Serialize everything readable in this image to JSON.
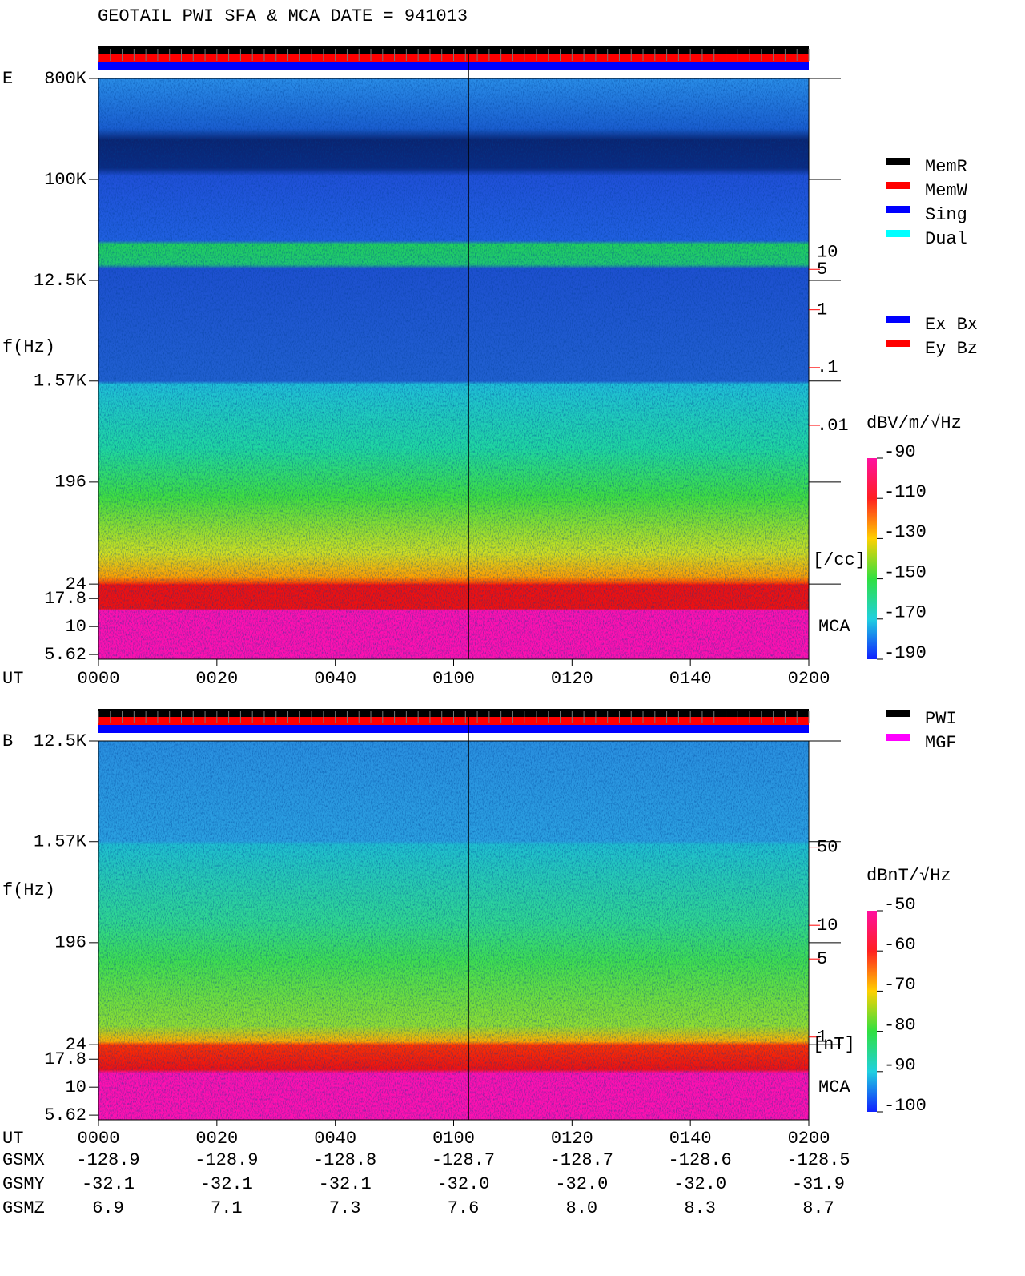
{
  "title": "GEOTAIL  PWI SFA & MCA   DATE = 941013",
  "chart_data": [
    {
      "type": "spectrogram",
      "panel_label": "E",
      "ylabel": "f(Hz)",
      "xlabel": "UT",
      "band_label": "MCA",
      "yscale": "log",
      "ylim": [
        5.1,
        800000
      ],
      "yticks": [
        {
          "value": 800000,
          "label": "800K"
        },
        {
          "value": 100000,
          "label": "100K"
        },
        {
          "value": 12500,
          "label": "12.5K"
        },
        {
          "value": 1570,
          "label": "1.57K"
        },
        196,
        24,
        17.8,
        10,
        5.62
      ],
      "xlim": [
        0,
        120
      ],
      "xticks": [
        {
          "value": 0,
          "label": "0000"
        },
        {
          "value": 20,
          "label": "0020"
        },
        {
          "value": 40,
          "label": "0040"
        },
        {
          "value": 60,
          "label": "0100"
        },
        {
          "value": 80,
          "label": "0120"
        },
        {
          "value": 100,
          "label": "0140"
        },
        {
          "value": 120,
          "label": "0200"
        }
      ],
      "y2scale": "log",
      "y2lim": [
        9e-07,
        10000
      ],
      "y2label": "[/cc]",
      "y2color": "#ff0000",
      "y2ticks": [
        10,
        5,
        1,
        {
          "value": 0.1,
          "label": ".1"
        },
        {
          "value": 0.01,
          "label": ".01"
        }
      ],
      "colorbar": {
        "label": "dBV/m/√Hz",
        "clim": [
          -190,
          -90
        ],
        "ticks": [
          -90,
          -110,
          -130,
          -150,
          -170,
          -190
        ]
      },
      "legend_groups": [
        [
          {
            "name": "MemR",
            "color": "#000000"
          },
          {
            "name": "MemW",
            "color": "#ff0000"
          },
          {
            "name": "Sing",
            "color": "#0000ff"
          },
          {
            "name": "Dual",
            "color": "#00ffff"
          }
        ],
        [
          {
            "name": "Ex Bx",
            "color": "#0000ff"
          },
          {
            "name": "Ey Bz",
            "color": "#ff0000"
          }
        ]
      ]
    },
    {
      "type": "spectrogram",
      "panel_label": "B",
      "ylabel": "f(Hz)",
      "xlabel": "UT",
      "band_label": "MCA",
      "yscale": "log",
      "ylim": [
        5.1,
        12500
      ],
      "yticks": [
        {
          "value": 12500,
          "label": "12.5K"
        },
        {
          "value": 1570,
          "label": "1.57K"
        },
        196,
        24,
        17.8,
        10,
        5.62
      ],
      "xlim": [
        0,
        120
      ],
      "xticks": [
        {
          "value": 0,
          "label": "0000"
        },
        {
          "value": 20,
          "label": "0020"
        },
        {
          "value": 40,
          "label": "0040"
        },
        {
          "value": 60,
          "label": "0100"
        },
        {
          "value": 80,
          "label": "0120"
        },
        {
          "value": 100,
          "label": "0140"
        },
        {
          "value": 120,
          "label": "0200"
        }
      ],
      "y2scale": "log",
      "y2lim": [
        0.182,
        446
      ],
      "y2label": "[nT]",
      "y2color": "#ff0000",
      "y2ticks": [
        50,
        10,
        5,
        1
      ],
      "colorbar": {
        "label": "dBnT/√Hz",
        "clim": [
          -100,
          -50
        ],
        "ticks": [
          -50,
          -60,
          -70,
          -80,
          -90,
          -100
        ]
      },
      "legend_groups": [
        [
          {
            "name": "PWI",
            "color": "#000000"
          },
          {
            "name": "MGF",
            "color": "#ff00ff"
          }
        ]
      ]
    }
  ],
  "orbit": {
    "rows": [
      {
        "label": "GSMX",
        "values": [
          "-128.9",
          "-128.9",
          "-128.8",
          "-128.7",
          "-128.7",
          "-128.6",
          "-128.5"
        ]
      },
      {
        "label": "GSMY",
        "values": [
          "-32.1",
          "-32.1",
          "-32.1",
          "-32.0",
          "-32.0",
          "-32.0",
          "-31.9"
        ]
      },
      {
        "label": "GSMZ",
        "values": [
          "6.9",
          "7.1",
          "7.3",
          "7.6",
          "8.0",
          "8.3",
          "8.7"
        ]
      }
    ]
  }
}
